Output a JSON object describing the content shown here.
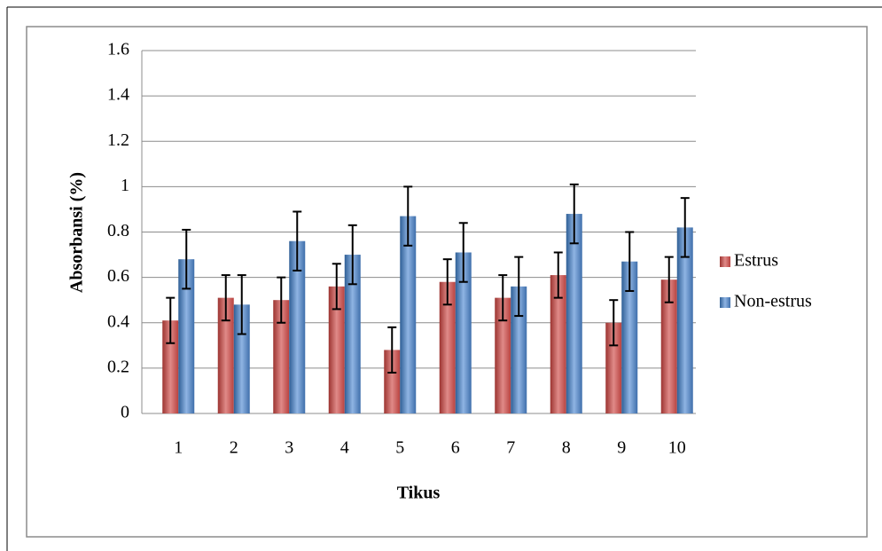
{
  "chart_data": {
    "type": "bar",
    "y_label": "Absorbansi (%)",
    "x_label": "Tikus",
    "categories": [
      "1",
      "2",
      "3",
      "4",
      "5",
      "6",
      "7",
      "8",
      "9",
      "10"
    ],
    "series": [
      {
        "name": "Estrus",
        "color": "#c0504d",
        "values": [
          0.41,
          0.51,
          0.5,
          0.56,
          0.28,
          0.58,
          0.51,
          0.61,
          0.4,
          0.59
        ],
        "errors": [
          0.1,
          0.1,
          0.1,
          0.1,
          0.1,
          0.1,
          0.1,
          0.1,
          0.1,
          0.1
        ]
      },
      {
        "name": "Non-estrus",
        "color": "#4f81bd",
        "values": [
          0.68,
          0.48,
          0.76,
          0.7,
          0.87,
          0.71,
          0.56,
          0.88,
          0.67,
          0.82
        ],
        "errors": [
          0.13,
          0.13,
          0.13,
          0.13,
          0.13,
          0.13,
          0.13,
          0.13,
          0.13,
          0.13
        ]
      }
    ],
    "ylim": [
      0,
      1.6
    ],
    "yticks": [
      0,
      0.2,
      0.4,
      0.6,
      0.8,
      1,
      1.2,
      1.4,
      1.6
    ],
    "grid": true,
    "legend": "right"
  }
}
